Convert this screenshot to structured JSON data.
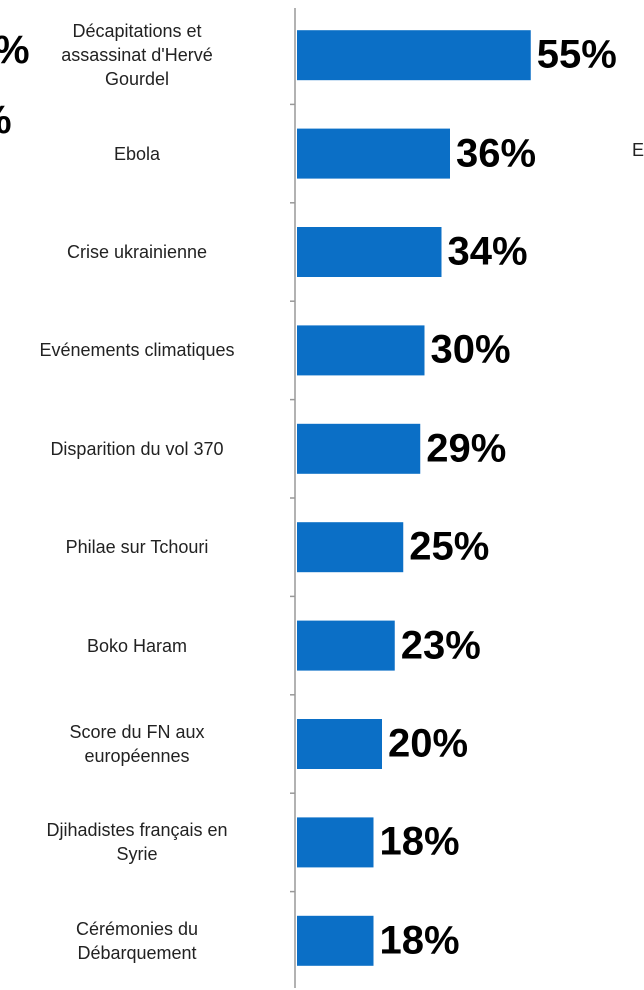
{
  "chart_data": {
    "type": "bar",
    "orientation": "horizontal",
    "categories": [
      "Décapitations et\nassassinat d'Hervé\nGourdel",
      "Ebola",
      "Crise ukrainienne",
      "Evénements climatiques",
      "Disparition du vol 370",
      "Philae sur Tchouri",
      "Boko Haram",
      "Score du FN aux\neuropéennes",
      "Djihadistes français en\nSyrie",
      "Cérémonies du\nDébarquement"
    ],
    "values": [
      55,
      36,
      34,
      30,
      29,
      25,
      23,
      20,
      18,
      18
    ],
    "value_labels": [
      "55%",
      "36%",
      "34%",
      "30%",
      "29%",
      "25%",
      "23%",
      "20%",
      "18%",
      "18%"
    ],
    "color": "#0b6fc6",
    "annotations": [
      "%",
      "%",
      "E"
    ]
  }
}
